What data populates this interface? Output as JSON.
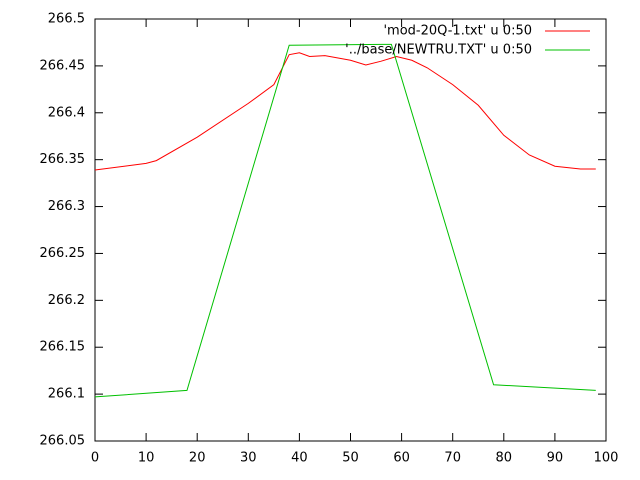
{
  "chart_data": {
    "type": "line",
    "series": [
      {
        "name": "'mod-20Q-1.txt' u 0:50",
        "color": "#ff0000",
        "x": [
          0,
          10,
          12,
          20,
          30,
          35,
          38,
          40,
          42,
          45,
          50,
          53,
          56,
          59,
          62,
          65,
          70,
          75,
          80,
          85,
          90,
          95,
          98
        ],
        "values": [
          266.339,
          266.346,
          266.349,
          266.374,
          266.41,
          266.43,
          266.462,
          266.464,
          266.46,
          266.461,
          266.456,
          266.451,
          266.455,
          266.46,
          266.456,
          266.448,
          266.43,
          266.408,
          266.376,
          266.355,
          266.343,
          266.34,
          266.34
        ]
      },
      {
        "name": "'../base/NEWTRU.TXT' u 0:50",
        "color": "#00c000",
        "x": [
          0,
          18,
          38,
          58,
          78,
          98
        ],
        "values": [
          266.097,
          266.104,
          266.472,
          266.473,
          266.11,
          266.104
        ]
      }
    ],
    "xlim": [
      0,
      100
    ],
    "xticks": [
      0,
      10,
      20,
      30,
      40,
      50,
      60,
      70,
      80,
      90,
      100
    ],
    "ylim": [
      266.05,
      266.5
    ],
    "yticks": [
      266.05,
      266.1,
      266.15,
      266.2,
      266.25,
      266.3,
      266.35,
      266.4,
      266.45,
      266.5
    ],
    "legend": "top-right"
  }
}
